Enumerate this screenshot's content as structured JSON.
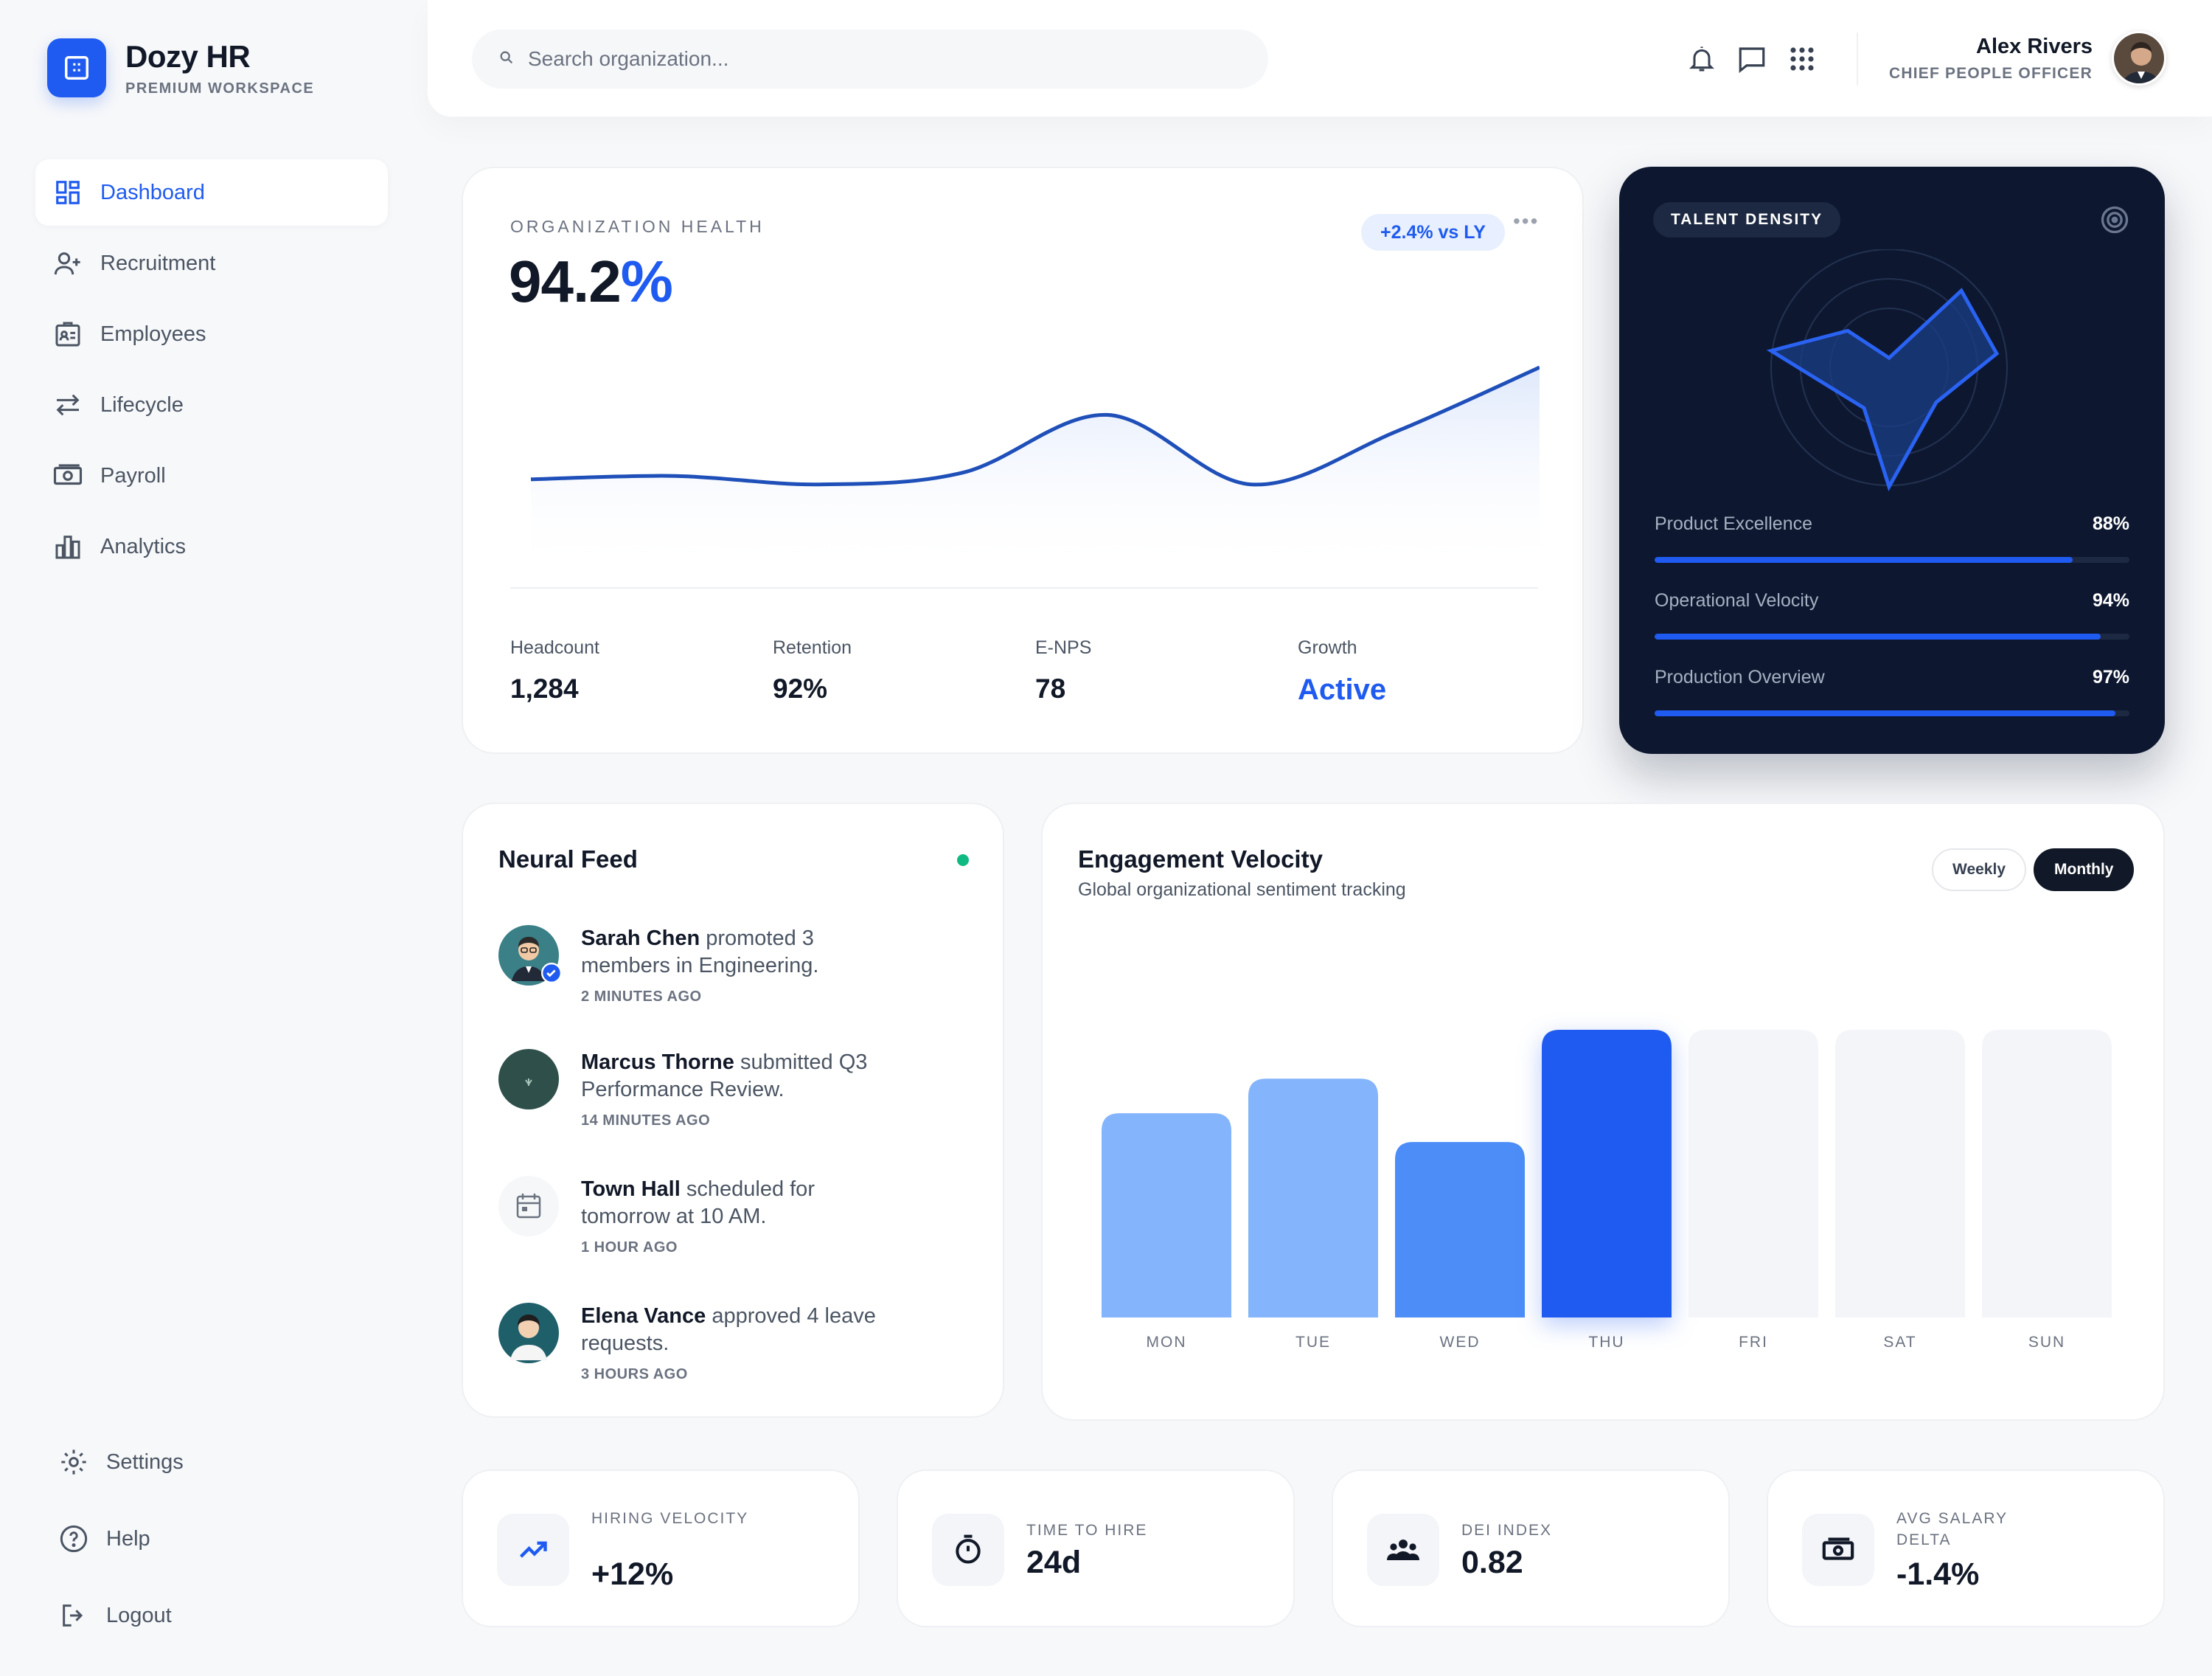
{
  "brand": {
    "name": "Dozy HR",
    "subtitle": "PREMIUM WORKSPACE"
  },
  "nav": {
    "items": [
      {
        "label": "Dashboard",
        "icon": "dashboard-icon",
        "active": true
      },
      {
        "label": "Recruitment",
        "icon": "user-plus-icon"
      },
      {
        "label": "Employees",
        "icon": "id-badge-icon"
      },
      {
        "label": "Lifecycle",
        "icon": "swap-arrows-icon"
      },
      {
        "label": "Payroll",
        "icon": "banknote-icon"
      },
      {
        "label": "Analytics",
        "icon": "bar-chart-icon"
      }
    ],
    "bottom": [
      {
        "label": "Settings",
        "icon": "gear-icon"
      },
      {
        "label": "Help",
        "icon": "help-circle-icon"
      },
      {
        "label": "Logout",
        "icon": "logout-icon"
      }
    ]
  },
  "search": {
    "placeholder": "Search organization..."
  },
  "user": {
    "name": "Alex Rivers",
    "role": "CHIEF PEOPLE OFFICER"
  },
  "org_health": {
    "label": "ORGANIZATION HEALTH",
    "value": "94.2",
    "value_unit": "%",
    "badge": "+2.4% vs LY",
    "more": "•••",
    "stats": [
      {
        "label": "Headcount",
        "value": "1,284"
      },
      {
        "label": "Retention",
        "value": "92%"
      },
      {
        "label": "E-NPS",
        "value": "78"
      },
      {
        "label": "Growth",
        "value": "Active"
      }
    ]
  },
  "talent": {
    "label": "TALENT DENSITY",
    "metrics": [
      {
        "name": "Product Excellence",
        "value": "88%",
        "fraction": 0.88
      },
      {
        "name": "Operational Velocity",
        "value": "94%",
        "fraction": 0.94
      },
      {
        "name": "Production Overview",
        "value": "97%",
        "fraction": 0.97
      }
    ]
  },
  "feed": {
    "title": "Neural Feed",
    "items": [
      {
        "name": "Sarah Chen",
        "text": "promoted 3 members in Engineering.",
        "time": "2 MINUTES AGO"
      },
      {
        "name": "Marcus Thorne",
        "text": "submitted Q3 Performance Review.",
        "time": "14 MINUTES AGO"
      },
      {
        "name": "Town Hall",
        "text": "scheduled for tomorrow at 10 AM.",
        "time": "1 HOUR AGO"
      },
      {
        "name": "Elena Vance",
        "text": "approved 4 leave requests.",
        "time": "3 HOURS AGO"
      }
    ]
  },
  "engagement": {
    "title": "Engagement Velocity",
    "subtitle": "Global organizational sentiment tracking",
    "toggles": {
      "weekly": "Weekly",
      "monthly": "Monthly"
    }
  },
  "chart_data": [
    {
      "type": "line",
      "title": "",
      "x": [
        0,
        1,
        2,
        3,
        4,
        5,
        6,
        7
      ],
      "values": [
        34,
        36,
        31,
        38,
        72,
        31,
        62,
        100
      ],
      "ylim": [
        0,
        100
      ],
      "grid": false
    },
    {
      "type": "bar",
      "categories": [
        "MON",
        "TUE",
        "WED",
        "THU",
        "FRI",
        "SAT",
        "SUN"
      ],
      "values": [
        71,
        83,
        61,
        100,
        100,
        100,
        100
      ],
      "highlight": "THU",
      "colors": [
        "#84b4fb",
        "#84b4fb",
        "#4d8df7",
        "#1f5bf0",
        "#f3f5f9",
        "#f3f5f9",
        "#f3f5f9"
      ],
      "ylim": [
        0,
        100
      ]
    }
  ],
  "kpis": [
    {
      "label": "HIRING VELOCITY",
      "value": "+12%",
      "icon": "trending-up-icon"
    },
    {
      "label": "TIME TO HIRE",
      "value": "24d",
      "icon": "stopwatch-icon"
    },
    {
      "label": "DEI INDEX",
      "value": "0.82",
      "icon": "people-group-icon"
    },
    {
      "label": "AVG SALARY DELTA",
      "value": "-1.4%",
      "icon": "banknote-icon"
    }
  ],
  "colors": {
    "accent": "#1f5bf0",
    "dark": "#0d1830",
    "online": "#10b981"
  }
}
